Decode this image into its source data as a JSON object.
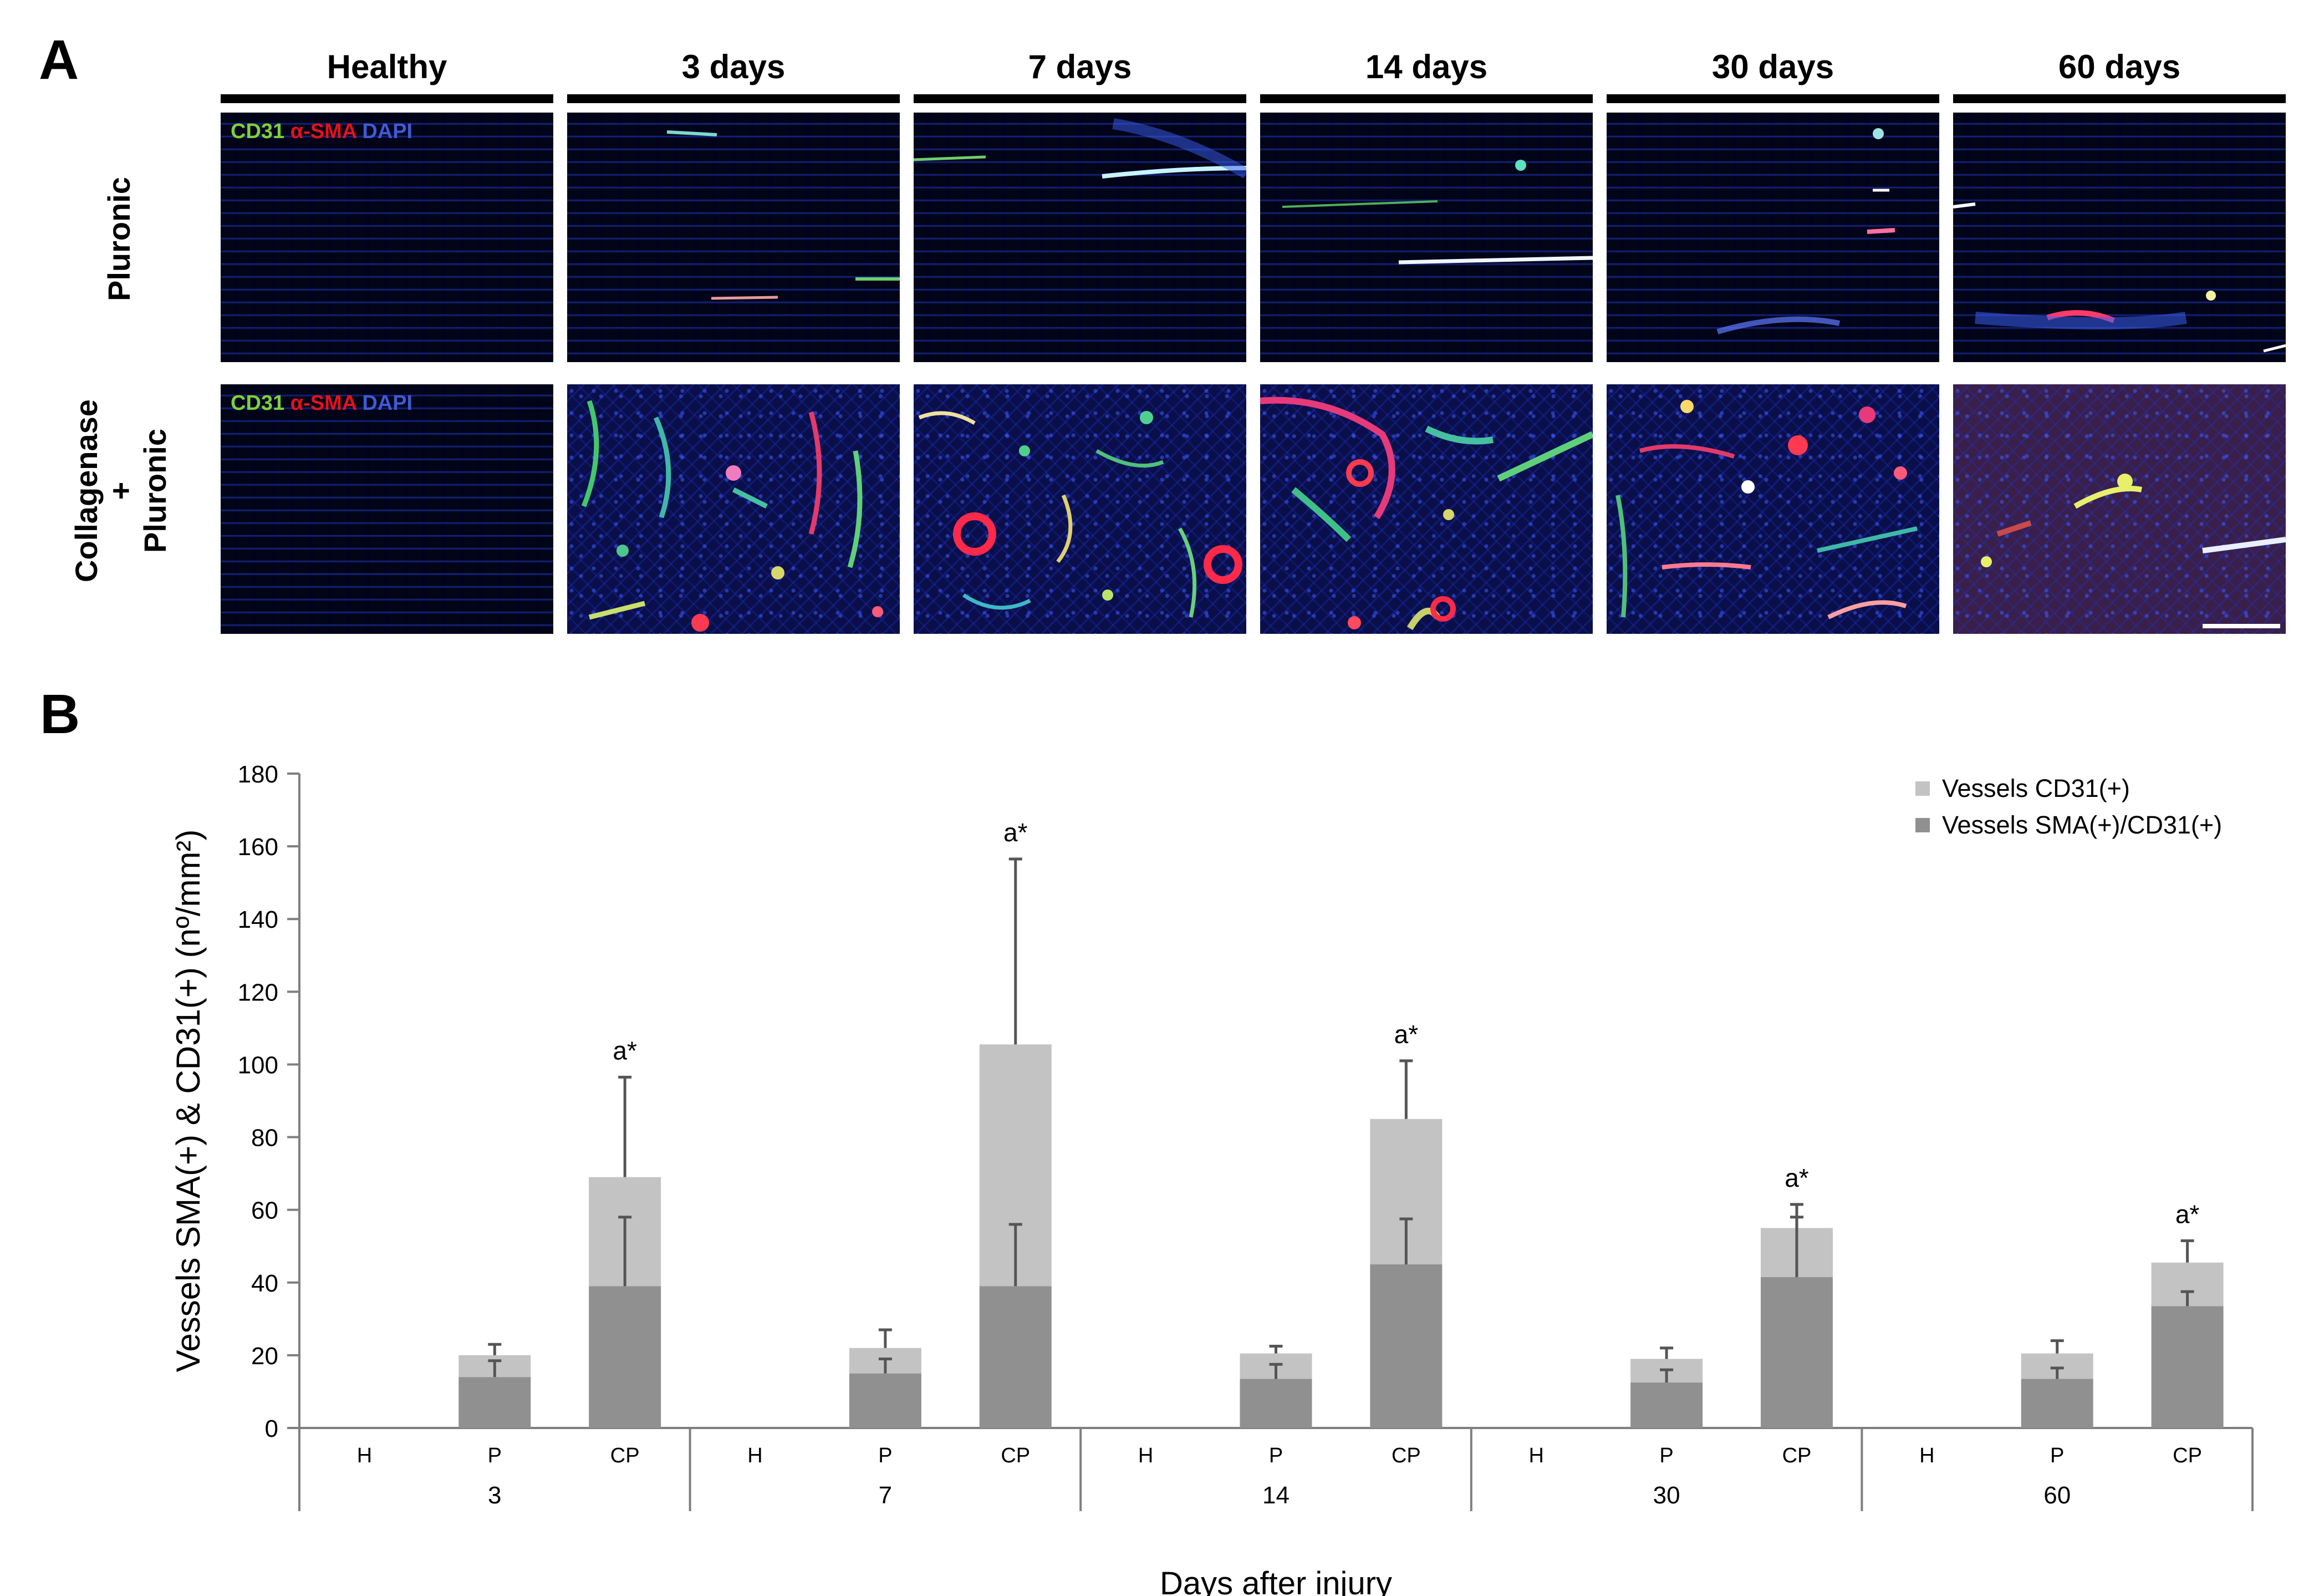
{
  "panel_a": {
    "label": "A",
    "columns": [
      "Healthy",
      "3 days",
      "7 days",
      "14 days",
      "30 days",
      "60 days"
    ],
    "rows": [
      "Pluronic",
      "Collagenase\n+\nPluronic"
    ],
    "stain_legend": {
      "cd31": "CD31",
      "sma": "α-SMA",
      "dapi": "DAPI",
      "cd31_color": "#7dd13a",
      "sma_color": "#e3121b",
      "dapi_color": "#3e5bd6"
    }
  },
  "panel_b": {
    "label": "B"
  },
  "chart_data": {
    "type": "bar",
    "stacked": true,
    "ylabel": "Vessels SMA(+) & CD31(+) (nº/mm²)",
    "xlabel": "Days after injury",
    "ylim": [
      0,
      180
    ],
    "yticks": [
      0,
      20,
      40,
      60,
      80,
      100,
      120,
      140,
      160,
      180
    ],
    "groups": [
      "3",
      "7",
      "14",
      "30",
      "60"
    ],
    "subcategories": [
      "H",
      "P",
      "CP"
    ],
    "series": [
      {
        "name": "Vessels SMA(+)/CD31(+)",
        "color": "#909090",
        "values": [
          [
            0,
            14,
            39
          ],
          [
            0,
            15,
            39
          ],
          [
            0,
            13.5,
            45
          ],
          [
            0,
            12.5,
            41.5
          ],
          [
            0,
            13.5,
            33.5
          ]
        ],
        "errors": [
          [
            0,
            4.5,
            19
          ],
          [
            0,
            4,
            17
          ],
          [
            0,
            4,
            12.5
          ],
          [
            0,
            3.5,
            16.5
          ],
          [
            0,
            3,
            4
          ]
        ]
      },
      {
        "name": "Vessels CD31(+)",
        "color": "#c3c3c3",
        "totals": [
          [
            0,
            20,
            69
          ],
          [
            0,
            22,
            105.5
          ],
          [
            0,
            20.5,
            85
          ],
          [
            0,
            19,
            55
          ],
          [
            0,
            20.5,
            45.5
          ]
        ],
        "errors": [
          [
            0,
            3,
            27.5
          ],
          [
            0,
            5,
            51
          ],
          [
            0,
            2,
            16
          ],
          [
            0,
            3,
            6.5
          ],
          [
            0,
            3.5,
            6
          ]
        ]
      }
    ],
    "annotations": [
      {
        "group": "3",
        "bar": "CP",
        "text": "a*"
      },
      {
        "group": "7",
        "bar": "CP",
        "text": "a*"
      },
      {
        "group": "14",
        "bar": "CP",
        "text": "a*"
      },
      {
        "group": "30",
        "bar": "CP",
        "text": "a*"
      },
      {
        "group": "60",
        "bar": "CP",
        "text": "a*"
      }
    ],
    "legend_position": "top-right",
    "grid": false
  }
}
